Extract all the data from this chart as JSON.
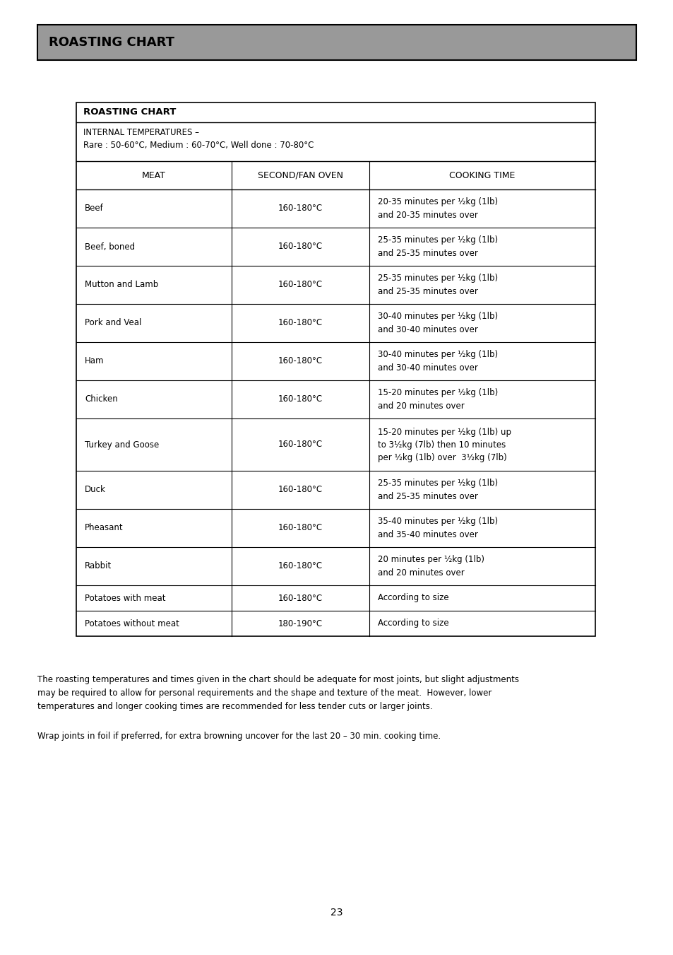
{
  "page_title": "ROASTING CHART",
  "page_title_bg": "#999999",
  "table_title": "ROASTING CHART",
  "internal_temps_line1": "INTERNAL TEMPERATURES –",
  "internal_temps_line2": "Rare : 50-60°C, Medium : 60-70°C, Well done : 70-80°C",
  "col_headers": [
    "MEAT",
    "SECOND/FAN OVEN",
    "COOKING TIME"
  ],
  "rows": [
    [
      "Beef",
      "160-180°C",
      "20-35 minutes per ½kg (1lb)\nand 20-35 minutes over"
    ],
    [
      "Beef, boned",
      "160-180°C",
      "25-35 minutes per ½kg (1lb)\nand 25-35 minutes over"
    ],
    [
      "Mutton and Lamb",
      "160-180°C",
      "25-35 minutes per ½kg (1lb)\nand 25-35 minutes over"
    ],
    [
      "Pork and Veal",
      "160-180°C",
      "30-40 minutes per ½kg (1lb)\nand 30-40 minutes over"
    ],
    [
      "Ham",
      "160-180°C",
      "30-40 minutes per ½kg (1lb)\nand 30-40 minutes over"
    ],
    [
      "Chicken",
      "160-180°C",
      "15-20 minutes per ½kg (1lb)\nand 20 minutes over"
    ],
    [
      "Turkey and Goose",
      "160-180°C",
      "15-20 minutes per ½kg (1lb) up\nto 3½kg (7lb) then 10 minutes\nper ½kg (1lb) over  3½kg (7lb)"
    ],
    [
      "Duck",
      "160-180°C",
      "25-35 minutes per ½kg (1lb)\nand 25-35 minutes over"
    ],
    [
      "Pheasant",
      "160-180°C",
      "35-40 minutes per ½kg (1lb)\nand 35-40 minutes over"
    ],
    [
      "Rabbit",
      "160-180°C",
      "20 minutes per ½kg (1lb)\nand 20 minutes over"
    ],
    [
      "Potatoes with meat",
      "160-180°C",
      "According to size"
    ],
    [
      "Potatoes without meat",
      "180-190°C",
      "According to size"
    ]
  ],
  "footnote1": "The roasting temperatures and times given in the chart should be adequate for most joints, but slight adjustments\nmay be required to allow for personal requirements and the shape and texture of the meat.  However, lower\ntemperatures and longer cooking times are recommended for less tender cuts or larger joints.",
  "footnote2": "Wrap joints in foil if preferred, for extra browning uncover for the last 20 – 30 min. cooking time.",
  "page_number": "23",
  "bg_color": "#ffffff",
  "text_color": "#000000",
  "border_color": "#000000"
}
